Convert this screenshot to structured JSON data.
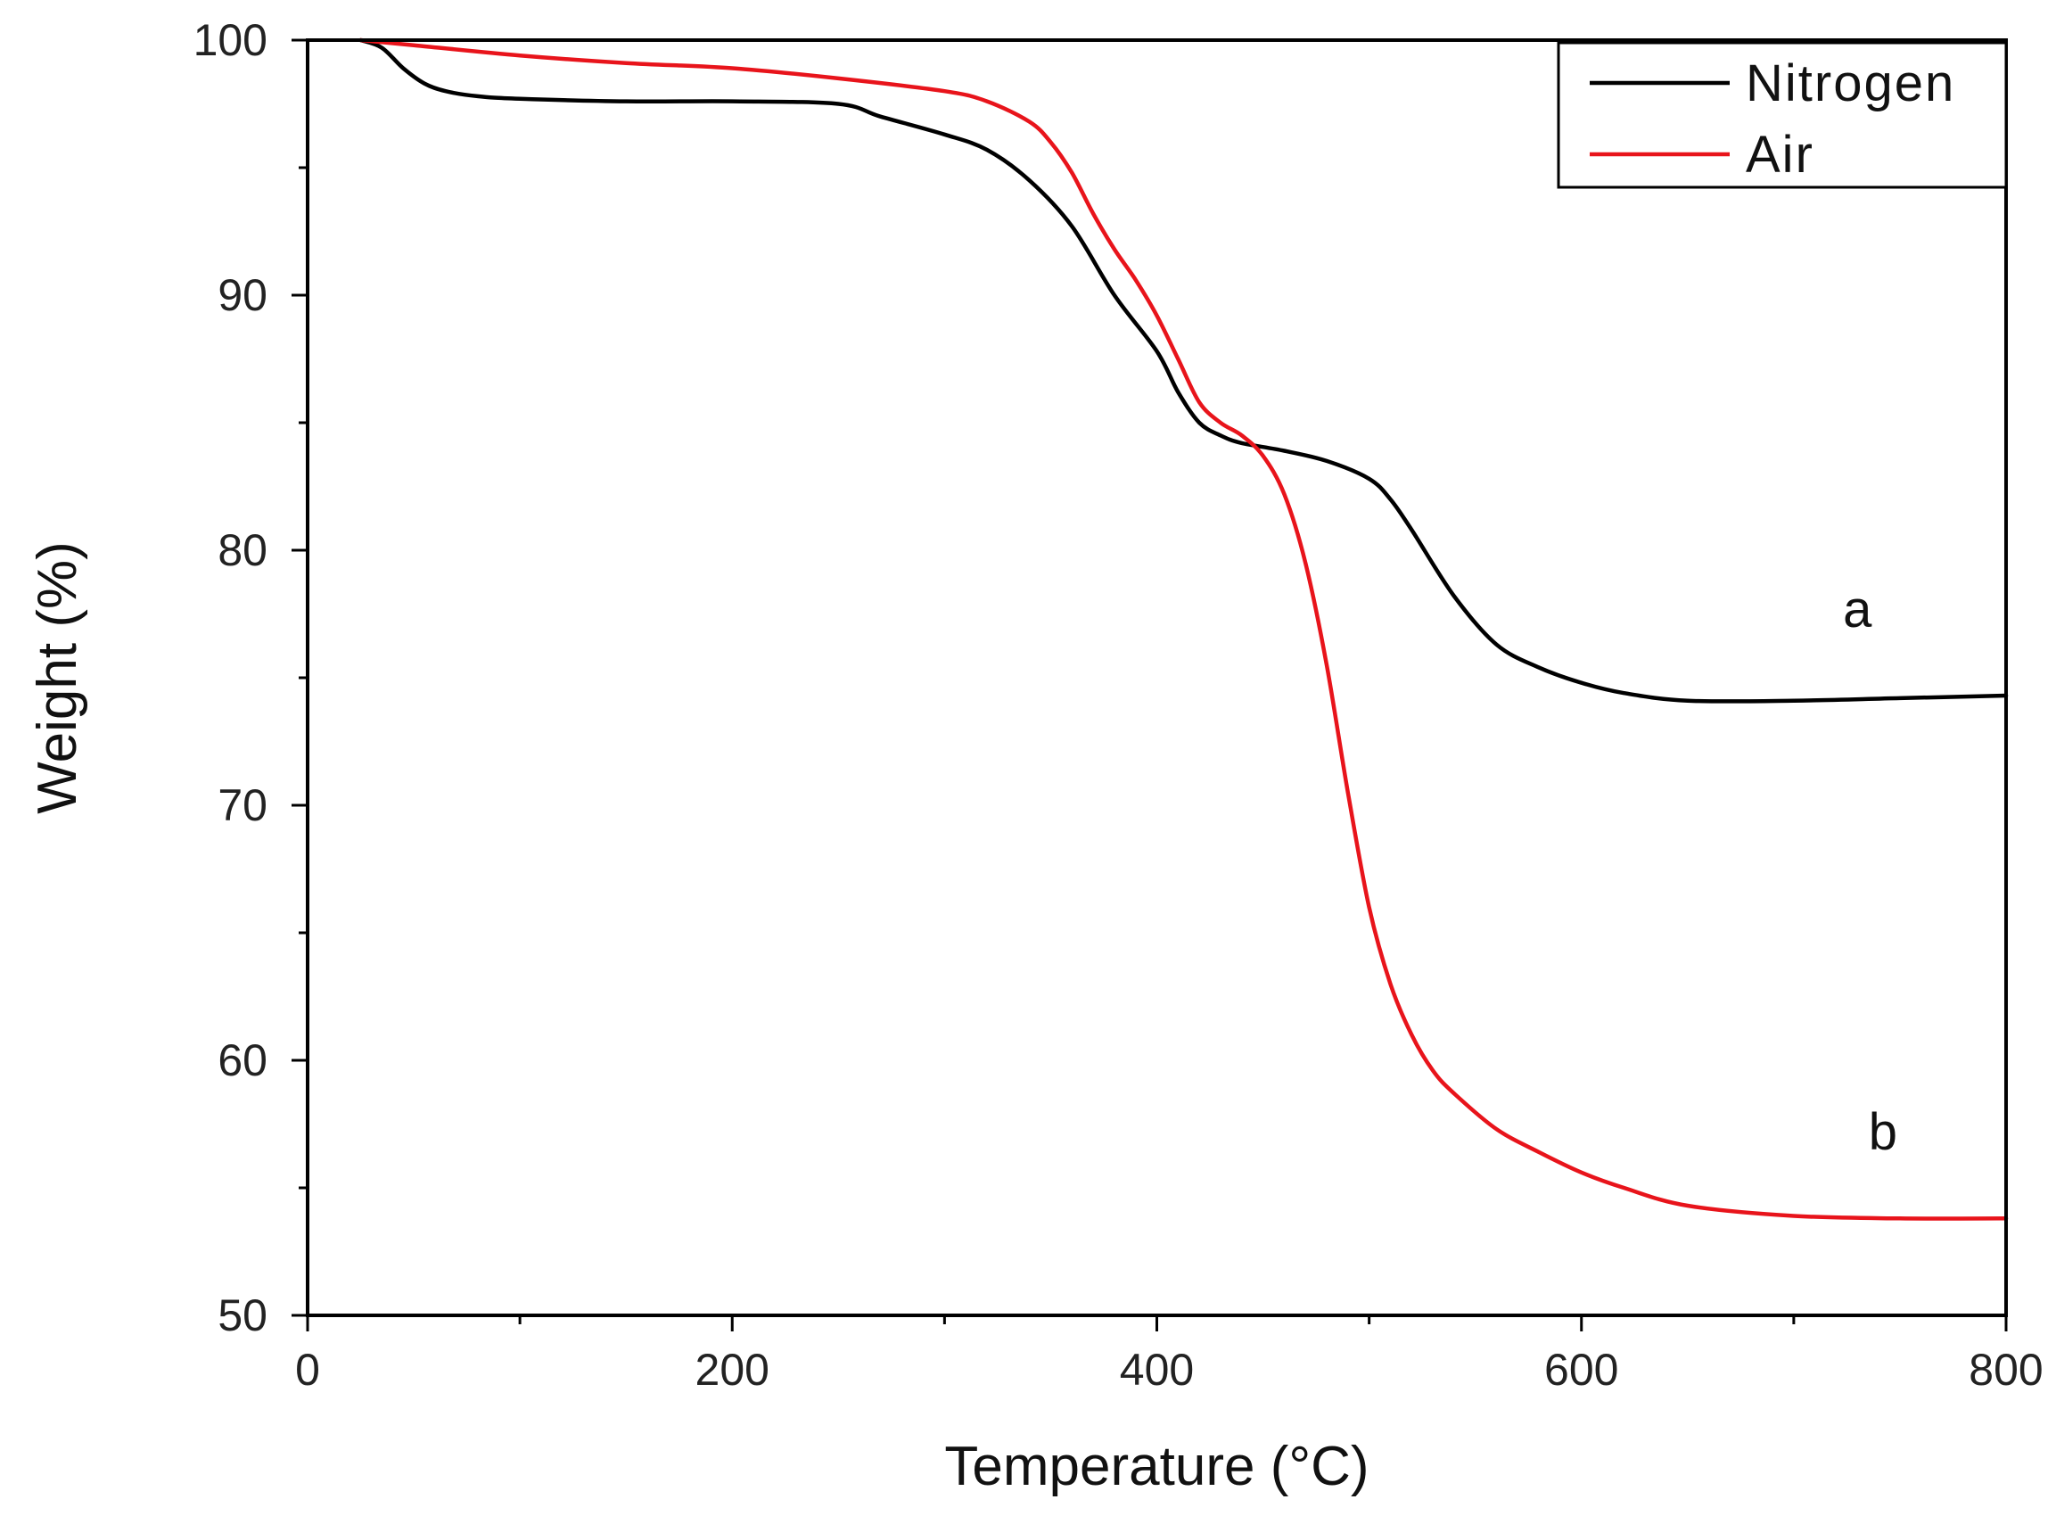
{
  "chart_data": {
    "type": "line",
    "title": "",
    "xlabel": "Temperature (°C)",
    "ylabel": "Weight (%)",
    "xlim": [
      0,
      800
    ],
    "ylim": [
      50,
      100
    ],
    "xticks": [
      0,
      200,
      400,
      600,
      800
    ],
    "yticks": [
      50,
      60,
      70,
      80,
      90,
      100
    ],
    "xtick_labels": [
      "0",
      "200",
      "400",
      "600",
      "800"
    ],
    "ytick_labels": [
      "50",
      "60",
      "70",
      "80",
      "90",
      "100"
    ],
    "grid": false,
    "legend_position": "top-right",
    "series": [
      {
        "name": "Nitrogen",
        "color": "#000000",
        "curve_label": "a",
        "curve_label_at": [
          730,
          77
        ],
        "x": [
          25,
          35,
          45,
          55,
          65,
          80,
          100,
          150,
          200,
          250,
          270,
          300,
          320,
          340,
          360,
          380,
          400,
          410,
          420,
          430,
          440,
          460,
          480,
          500,
          510,
          520,
          540,
          560,
          580,
          600,
          620,
          650,
          700,
          750,
          800
        ],
        "y": [
          100.0,
          99.7,
          98.9,
          98.3,
          98.0,
          97.8,
          97.7,
          97.6,
          97.6,
          97.5,
          97.0,
          96.3,
          95.7,
          94.5,
          92.7,
          90.0,
          87.8,
          86.2,
          85.0,
          84.5,
          84.2,
          83.9,
          83.5,
          82.8,
          82.0,
          80.8,
          78.2,
          76.3,
          75.4,
          74.8,
          74.4,
          74.1,
          74.1,
          74.2,
          74.3
        ]
      },
      {
        "name": "Air",
        "color": "#e8141b",
        "curve_label": "b",
        "curve_label_at": [
          742,
          56.5
        ],
        "x": [
          25,
          50,
          100,
          150,
          200,
          250,
          300,
          320,
          340,
          350,
          360,
          370,
          380,
          390,
          400,
          410,
          420,
          430,
          440,
          450,
          460,
          470,
          480,
          490,
          500,
          510,
          520,
          530,
          540,
          560,
          580,
          600,
          620,
          650,
          700,
          750,
          800
        ],
        "y": [
          100.0,
          99.8,
          99.4,
          99.1,
          98.9,
          98.5,
          98.0,
          97.6,
          96.8,
          96.0,
          94.8,
          93.2,
          91.8,
          90.6,
          89.2,
          87.5,
          85.8,
          85.0,
          84.5,
          83.7,
          82.2,
          79.5,
          75.5,
          70.5,
          66.0,
          63.0,
          61.0,
          59.6,
          58.7,
          57.3,
          56.4,
          55.6,
          55.0,
          54.3,
          53.9,
          53.8,
          53.8
        ]
      }
    ]
  }
}
